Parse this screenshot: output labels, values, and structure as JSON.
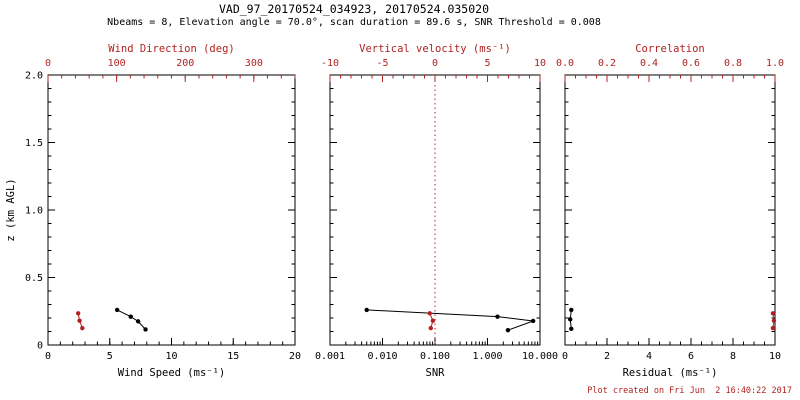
{
  "title": "VAD_97_20170524_034923, 20170524.035020",
  "subtitle": "Nbeams = 8, Elevation angle = 70.0°, scan duration = 89.6 s, SNR Threshold = 0.008",
  "footer": "Plot created on Fri Jun  2 16:40:22 2017",
  "colors": {
    "axis": "#000000",
    "accent": "#b22222",
    "background": "#ffffff"
  },
  "chart_data": {
    "type": "scatter",
    "grid": false,
    "legend": "none",
    "yaxis": {
      "label": "z (km AGL)",
      "range": [
        0,
        2.0
      ],
      "ticks": [
        0,
        0.5,
        1.0,
        1.5,
        2.0
      ],
      "tick_labels": [
        "0",
        "0.5",
        "1.0",
        "1.5",
        "2.0"
      ],
      "minor_step": 0.1
    },
    "panels": [
      {
        "name": "wind-panel",
        "bottom_axis": {
          "label": "Wind Speed (ms⁻¹)",
          "scale": "linear",
          "range": [
            0,
            20
          ],
          "ticks": [
            0,
            5,
            10,
            15,
            20
          ],
          "tick_labels": [
            "0",
            "5",
            "10",
            "15",
            "20"
          ],
          "minor_step": 1
        },
        "top_axis": {
          "label": "Wind Direction (deg)",
          "scale": "linear",
          "range": [
            0,
            360
          ],
          "ticks": [
            0,
            100,
            200,
            300
          ],
          "tick_labels": [
            "0",
            "100",
            "200",
            "300"
          ],
          "minor_step": 20
        },
        "series": [
          {
            "name": "wind-speed",
            "axis": "bottom",
            "color": "axis",
            "points": [
              [
                5.6,
                0.26
              ],
              [
                6.7,
                0.21
              ],
              [
                7.3,
                0.175
              ],
              [
                7.9,
                0.115
              ]
            ]
          },
          {
            "name": "wind-direction",
            "axis": "top",
            "color": "accent",
            "points": [
              [
                44,
                0.235
              ],
              [
                46,
                0.18
              ],
              [
                50,
                0.125
              ]
            ]
          }
        ]
      },
      {
        "name": "snr-panel",
        "bottom_axis": {
          "label": "SNR",
          "scale": "log",
          "range": [
            0.001,
            10
          ],
          "ticks": [
            0.001,
            0.01,
            0.1,
            1,
            10
          ],
          "tick_labels": [
            "0.001",
            "0.010",
            "0.100",
            "1.000",
            "10.000"
          ]
        },
        "top_axis": {
          "label": "Vertical velocity (ms⁻¹)",
          "scale": "linear",
          "range": [
            -10,
            10
          ],
          "ticks": [
            -10,
            -5,
            0,
            5,
            10
          ],
          "tick_labels": [
            "-10",
            "-5",
            "0",
            "5",
            "10"
          ],
          "minor_step": 1
        },
        "refline": {
          "axis": "top",
          "value": 0,
          "style": "dotted"
        },
        "series": [
          {
            "name": "snr",
            "axis": "bottom",
            "color": "axis",
            "points": [
              [
                0.005,
                0.26
              ],
              [
                1.55,
                0.21
              ],
              [
                7.4,
                0.178
              ],
              [
                2.45,
                0.11
              ]
            ]
          },
          {
            "name": "vertical-velocity",
            "axis": "top",
            "color": "accent",
            "points": [
              [
                -0.5,
                0.235
              ],
              [
                -0.2,
                0.18
              ],
              [
                -0.4,
                0.125
              ]
            ]
          }
        ]
      },
      {
        "name": "residual-panel",
        "bottom_axis": {
          "label": "Residual (ms⁻¹)",
          "scale": "linear",
          "range": [
            0,
            10
          ],
          "ticks": [
            0,
            2,
            4,
            6,
            8,
            10
          ],
          "tick_labels": [
            "0",
            "2",
            "4",
            "6",
            "8",
            "10"
          ],
          "minor_step": 0.5
        },
        "top_axis": {
          "label": "Correlation",
          "scale": "linear",
          "range": [
            0,
            1
          ],
          "ticks": [
            0,
            0.2,
            0.4,
            0.6,
            0.8,
            1.0
          ],
          "tick_labels": [
            "0.0",
            "0.2",
            "0.4",
            "0.6",
            "0.8",
            "1.0"
          ],
          "minor_step": 0.05
        },
        "series": [
          {
            "name": "residual",
            "axis": "bottom",
            "color": "axis",
            "points": [
              [
                0.3,
                0.26
              ],
              [
                0.25,
                0.19
              ],
              [
                0.3,
                0.12
              ]
            ]
          },
          {
            "name": "correlation",
            "axis": "top",
            "color": "accent",
            "points": [
              [
                0.99,
                0.235
              ],
              [
                0.995,
                0.18
              ],
              [
                0.99,
                0.125
              ]
            ]
          }
        ]
      }
    ]
  }
}
